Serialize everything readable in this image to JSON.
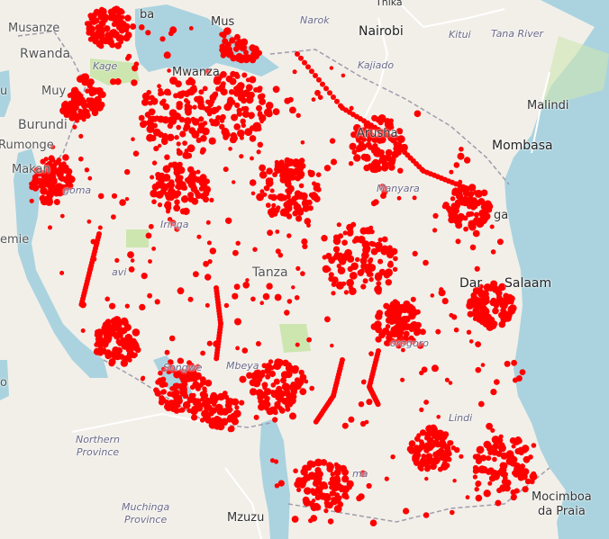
{
  "labels": {
    "musanze": "Musanze",
    "rwanda": "Rwanda",
    "burundi": "Burundi",
    "muy": "Muy",
    "rumonge": "Rumonge",
    "makan": "Makan",
    "uvira": "u",
    "kage": "Kage",
    "mwanza": "Mwanza",
    "musoma": "Mus",
    "bukoba": "ba",
    "narok": "Narok",
    "thika": "Thika",
    "nairobi": "Nairobi",
    "kitui": "Kitui",
    "tana_river": "Tana River",
    "kajiado": "Kajiado",
    "arusha": "Arusha",
    "manyara": "Manyara",
    "malindi": "Malindi",
    "mombasa": "Mombasa",
    "tanga": "ga",
    "kigoma": "goma",
    "emie": "emie",
    "tabora": "avi",
    "tanzania": "Tanza",
    "dar": "Salaam",
    "dar_prefix": "Dar",
    "morogoro": "orogoro",
    "songwe": "Songwe",
    "mbeya": "Mbeya",
    "lindi": "Lindi",
    "northern_province": "Northern\nProvince",
    "muchinga_province": "Muchinga\nProvince",
    "mzuzu": "Mzuzu",
    "mocimboa": "Mocimboa\nda Praia",
    "ruvuma": "ma",
    "iringa": "Iringa",
    "zambia_o": "o"
  },
  "colors": {
    "land": "#f2efe9",
    "water": "#aad3df",
    "border": "#9e9cab",
    "road": "#ffffff",
    "park": "#cde6b0",
    "points": "#ff0000"
  },
  "map_content": {
    "description_points": "Dense red survey points covering Tanzania"
  }
}
